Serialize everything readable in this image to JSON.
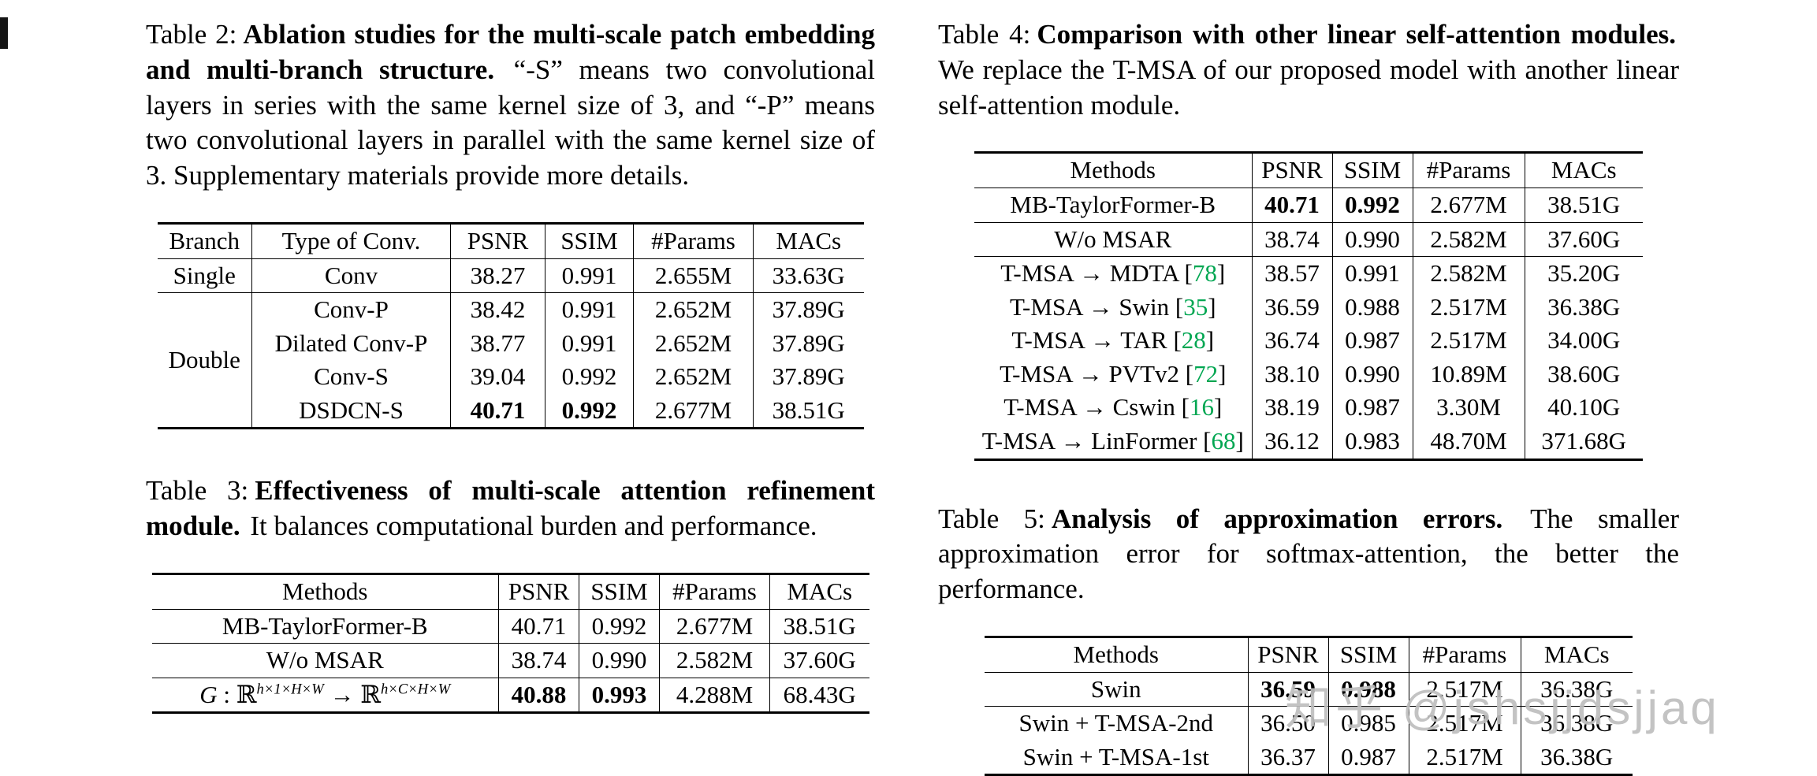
{
  "page": {
    "background": "#ffffff"
  },
  "colors": {
    "text": "#000000",
    "citation_green": "#00a651",
    "watermark_gray": "#bebebe"
  },
  "watermark": {
    "text": "知乎 @jshsjjdsjjaq"
  },
  "tables": {
    "table2": {
      "caption_label": "Table 2:",
      "caption_bold": "Ablation studies for the multi-scale patch embedding and multi-branch structure.",
      "caption_rest": "“-S” means two convolutional layers in series with the same kernel size of 3, and “-P” means two convolutional layers in parallel with the same kernel size of 3. Supplementary materials provide more details.",
      "headers": [
        "Branch",
        "Type of Conv.",
        "PSNR",
        "SSIM",
        "#Params",
        "MACs"
      ],
      "rows": [
        [
          "Single",
          "Conv",
          "38.27",
          "0.991",
          "2.655M",
          "33.63G"
        ],
        [
          {
            "text": "Double",
            "rowspan": 4
          },
          "Conv-P",
          "38.42",
          "0.991",
          "2.652M",
          "37.89G"
        ],
        [
          "Dilated Conv-P",
          "38.77",
          "0.991",
          "2.652M",
          "37.89G"
        ],
        [
          "Conv-S",
          "39.04",
          "0.992",
          "2.652M",
          "37.89G"
        ],
        [
          "DSDCN-S",
          {
            "text": "40.71",
            "bold": true
          },
          {
            "text": "0.992",
            "bold": true
          },
          "2.677M",
          "38.51G"
        ]
      ],
      "rule_after": [
        0
      ]
    },
    "table3": {
      "caption_label": "Table 3:",
      "caption_bold": "Effectiveness of multi-scale attention refinement module.",
      "caption_rest": "It balances computational burden and performance.",
      "headers": [
        "Methods",
        "PSNR",
        "SSIM",
        "#Params",
        "MACs"
      ],
      "rows": [
        [
          "MB-TaylorFormer-B",
          "40.71",
          "0.992",
          "2.677M",
          "38.51G"
        ],
        [
          "W/o MSAR",
          "38.74",
          "0.990",
          "2.582M",
          "37.60G"
        ],
        [
          {
            "math": [
              {
                "t": "var",
                "v": "G"
              },
              {
                "t": "plain",
                "v": " : "
              },
              {
                "t": "bb",
                "v": "ℝ"
              },
              {
                "t": "sup",
                "v": "h×1×H×W"
              },
              {
                "t": "plain",
                "v": " → "
              },
              {
                "t": "bb",
                "v": "ℝ"
              },
              {
                "t": "sup",
                "v": "h×C×H×W"
              }
            ]
          },
          {
            "text": "40.88",
            "bold": true
          },
          {
            "text": "0.993",
            "bold": true
          },
          "4.288M",
          "68.43G"
        ]
      ],
      "rule_after": [
        0,
        1
      ]
    },
    "table4": {
      "caption_label": "Table 4:",
      "caption_bold": "Comparison with other linear self-attention modules.",
      "caption_rest": "We replace the T-MSA of our proposed model with another linear self-attention module.",
      "headers": [
        "Methods",
        "PSNR",
        "SSIM",
        "#Params",
        "MACs"
      ],
      "rows": [
        [
          "MB-TaylorFormer-B",
          {
            "text": "40.71",
            "bold": true
          },
          {
            "text": "0.992",
            "bold": true
          },
          "2.677M",
          "38.51G"
        ],
        [
          "W/o MSAR",
          "38.74",
          "0.990",
          "2.582M",
          "37.60G"
        ],
        [
          {
            "text": "T-MSA → MDTA ",
            "cite": "78"
          },
          "38.57",
          "0.991",
          "2.582M",
          "35.20G"
        ],
        [
          {
            "text": "T-MSA → Swin ",
            "cite": "35"
          },
          "36.59",
          "0.988",
          "2.517M",
          "36.38G"
        ],
        [
          {
            "text": "T-MSA → TAR ",
            "cite": "28"
          },
          "36.74",
          "0.987",
          "2.517M",
          "34.00G"
        ],
        [
          {
            "text": "T-MSA → PVTv2 ",
            "cite": "72"
          },
          "38.10",
          "0.990",
          "10.89M",
          "38.60G"
        ],
        [
          {
            "text": "T-MSA → Cswin ",
            "cite": "16"
          },
          "38.19",
          "0.987",
          "3.30M",
          "40.10G"
        ],
        [
          {
            "text": "T-MSA → LinFormer ",
            "cite": "68"
          },
          "36.12",
          "0.983",
          "48.70M",
          "371.68G"
        ]
      ],
      "rule_after": [
        0,
        1
      ]
    },
    "table5": {
      "caption_label": "Table 5:",
      "caption_bold": "Analysis of approximation errors.",
      "caption_rest": "The smaller approximation error for softmax-attention, the better the performance.",
      "headers": [
        "Methods",
        "PSNR",
        "SSIM",
        "#Params",
        "MACs"
      ],
      "rows": [
        [
          "Swin",
          {
            "text": "36.59",
            "bold": true
          },
          {
            "text": "0.988",
            "bold": true
          },
          "2.517M",
          "36.38G"
        ],
        [
          "Swin + T-MSA-2nd",
          "36.50",
          "0.985",
          "2.517M",
          "36.38G"
        ],
        [
          "Swin + T-MSA-1st",
          "36.37",
          "0.987",
          "2.517M",
          "36.38G"
        ]
      ],
      "rule_after": [
        0
      ]
    }
  }
}
